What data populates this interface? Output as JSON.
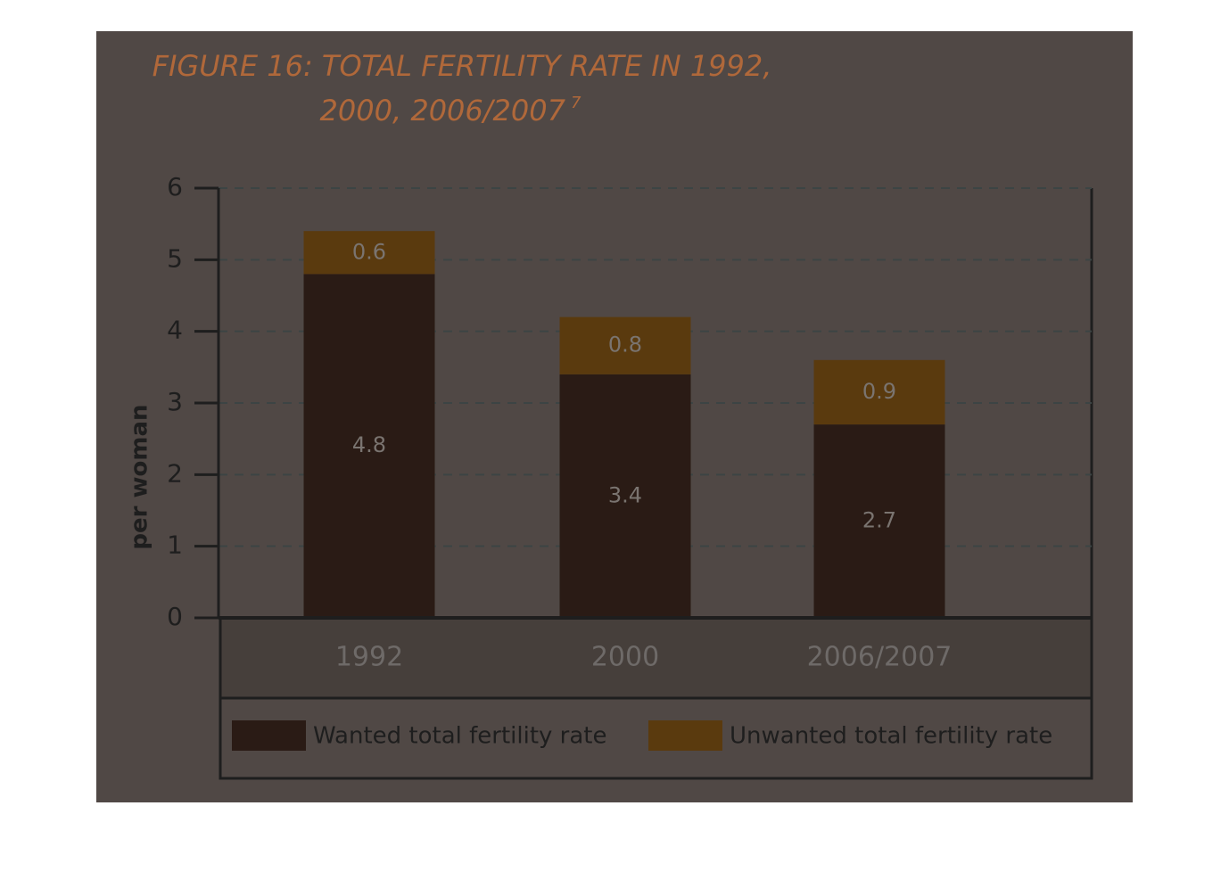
{
  "chart_data": {
    "type": "stacked_bar",
    "title": [
      "FIGURE 16: TOTAL FERTILITY RATE IN 1992,",
      "2000, 2006/2007"
    ],
    "title_note": "7",
    "y_label": "per woman",
    "categories": [
      "1992",
      "2000",
      "2006/2007"
    ],
    "series": [
      {
        "name": "Wanted total fertility rate",
        "color": "#2a1b15",
        "values": [
          4.8,
          3.4,
          2.7
        ]
      },
      {
        "name": "Unwanted total fertility rate",
        "color": "#5a3a0e",
        "values": [
          0.6,
          0.8,
          0.9
        ]
      }
    ],
    "ylim": [
      0,
      6
    ],
    "yticks": [
      0,
      1,
      2,
      3,
      4,
      5,
      6
    ],
    "grid": true
  }
}
